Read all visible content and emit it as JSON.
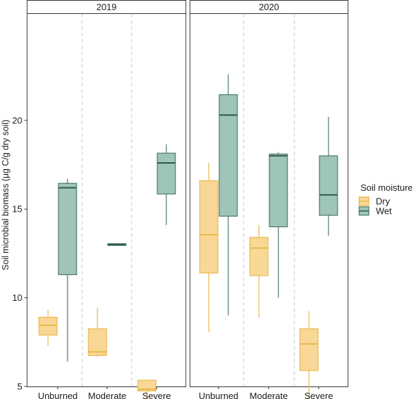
{
  "chart_data": {
    "type": "boxplot",
    "facets": [
      "2019",
      "2020"
    ],
    "categories": [
      "Unburned",
      "Moderate",
      "Severe"
    ],
    "ylabel": "Soil microbial biomass (µg C/g dry soil)",
    "xlabel": "",
    "ylim": [
      5,
      26
    ],
    "yticks": [
      5,
      10,
      15,
      20
    ],
    "grid": false,
    "legend_position": "right",
    "legend": {
      "title": "Soil moisture",
      "entries": [
        {
          "key": "Dry",
          "label": "Dry"
        },
        {
          "key": "Wet",
          "label": "Wet"
        }
      ]
    },
    "colors": {
      "Dry": {
        "fill": "#f9d897",
        "stroke": "#e8b84a"
      },
      "Wet": {
        "fill": "#9ec5b7",
        "stroke": "#4a7a66"
      }
    },
    "boxes": [
      {
        "facet": "2019",
        "category": "Unburned",
        "series": "Dry",
        "min": 7.3,
        "q1": 7.9,
        "median": 8.45,
        "q3": 8.9,
        "max": 9.3
      },
      {
        "facet": "2019",
        "category": "Unburned",
        "series": "Wet",
        "min": 6.4,
        "q1": 11.3,
        "median": 16.2,
        "q3": 16.45,
        "max": 16.7
      },
      {
        "facet": "2019",
        "category": "Moderate",
        "series": "Dry",
        "min": 6.65,
        "q1": 6.75,
        "median": 6.95,
        "q3": 8.25,
        "max": 9.45
      },
      {
        "facet": "2019",
        "category": "Moderate",
        "series": "Wet",
        "min": 12.95,
        "q1": 12.95,
        "median": 13.0,
        "q3": 13.05,
        "max": 13.05
      },
      {
        "facet": "2019",
        "category": "Severe",
        "series": "Dry",
        "min": 4.2,
        "q1": 4.75,
        "median": 4.85,
        "q3": 5.35,
        "max": 5.4
      },
      {
        "facet": "2019",
        "category": "Severe",
        "series": "Wet",
        "min": 14.1,
        "q1": 15.85,
        "median": 17.6,
        "q3": 18.15,
        "max": 18.65
      },
      {
        "facet": "2020",
        "category": "Unburned",
        "series": "Dry",
        "min": 8.05,
        "q1": 11.4,
        "median": 13.55,
        "q3": 16.6,
        "max": 17.6
      },
      {
        "facet": "2020",
        "category": "Unburned",
        "series": "Wet",
        "min": 9.0,
        "q1": 14.6,
        "median": 20.3,
        "q3": 21.45,
        "max": 22.6
      },
      {
        "facet": "2020",
        "category": "Moderate",
        "series": "Dry",
        "min": 8.9,
        "q1": 11.25,
        "median": 12.8,
        "q3": 13.4,
        "max": 14.1
      },
      {
        "facet": "2020",
        "category": "Moderate",
        "series": "Wet",
        "min": 10.0,
        "q1": 14.0,
        "median": 18.0,
        "q3": 18.1,
        "max": 18.2
      },
      {
        "facet": "2020",
        "category": "Severe",
        "series": "Dry",
        "min": 3.6,
        "q1": 5.9,
        "median": 7.4,
        "q3": 8.25,
        "max": 9.25
      },
      {
        "facet": "2020",
        "category": "Severe",
        "series": "Wet",
        "min": 13.5,
        "q1": 14.65,
        "median": 15.8,
        "q3": 18.0,
        "max": 20.2
      }
    ]
  }
}
